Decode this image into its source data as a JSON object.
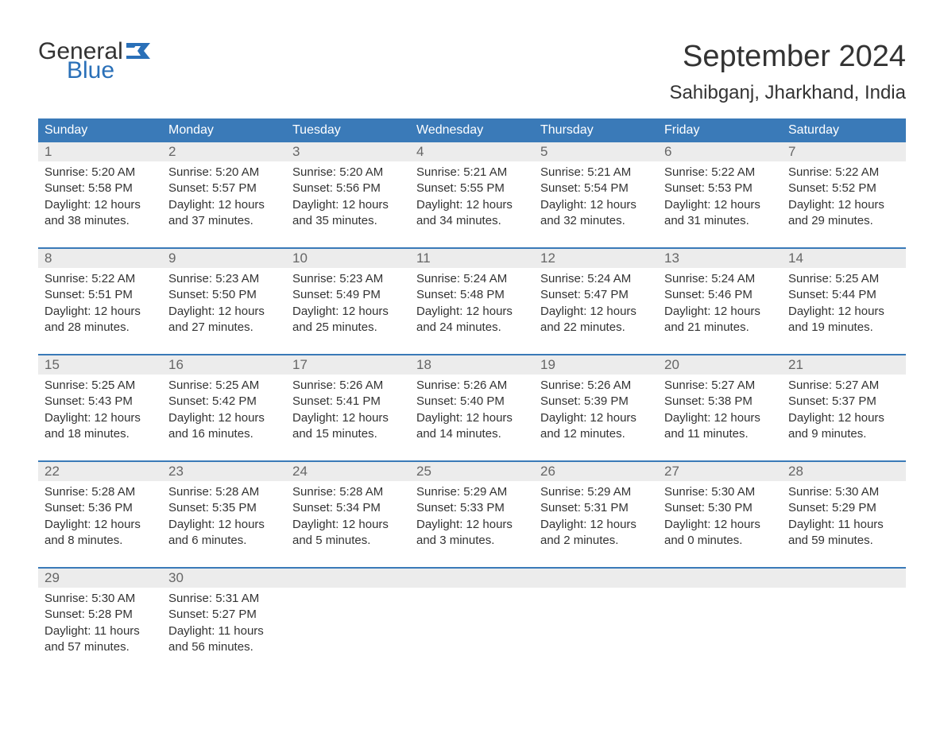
{
  "brand": {
    "word1": "General",
    "word2": "Blue",
    "flag_color": "#2a70b8"
  },
  "title": "September 2024",
  "subtitle": "Sahibganj, Jharkhand, India",
  "colors": {
    "header_bg": "#3a7ab8",
    "header_text": "#ffffff",
    "daynum_bg": "#ececec",
    "daynum_text": "#666666",
    "border_top": "#3a7ab8",
    "body_text": "#333333",
    "brand_blue": "#2a70b8",
    "background": "#ffffff"
  },
  "day_headers": [
    "Sunday",
    "Monday",
    "Tuesday",
    "Wednesday",
    "Thursday",
    "Friday",
    "Saturday"
  ],
  "weeks": [
    [
      {
        "n": "1",
        "sunrise": "Sunrise: 5:20 AM",
        "sunset": "Sunset: 5:58 PM",
        "dl1": "Daylight: 12 hours",
        "dl2": "and 38 minutes."
      },
      {
        "n": "2",
        "sunrise": "Sunrise: 5:20 AM",
        "sunset": "Sunset: 5:57 PM",
        "dl1": "Daylight: 12 hours",
        "dl2": "and 37 minutes."
      },
      {
        "n": "3",
        "sunrise": "Sunrise: 5:20 AM",
        "sunset": "Sunset: 5:56 PM",
        "dl1": "Daylight: 12 hours",
        "dl2": "and 35 minutes."
      },
      {
        "n": "4",
        "sunrise": "Sunrise: 5:21 AM",
        "sunset": "Sunset: 5:55 PM",
        "dl1": "Daylight: 12 hours",
        "dl2": "and 34 minutes."
      },
      {
        "n": "5",
        "sunrise": "Sunrise: 5:21 AM",
        "sunset": "Sunset: 5:54 PM",
        "dl1": "Daylight: 12 hours",
        "dl2": "and 32 minutes."
      },
      {
        "n": "6",
        "sunrise": "Sunrise: 5:22 AM",
        "sunset": "Sunset: 5:53 PM",
        "dl1": "Daylight: 12 hours",
        "dl2": "and 31 minutes."
      },
      {
        "n": "7",
        "sunrise": "Sunrise: 5:22 AM",
        "sunset": "Sunset: 5:52 PM",
        "dl1": "Daylight: 12 hours",
        "dl2": "and 29 minutes."
      }
    ],
    [
      {
        "n": "8",
        "sunrise": "Sunrise: 5:22 AM",
        "sunset": "Sunset: 5:51 PM",
        "dl1": "Daylight: 12 hours",
        "dl2": "and 28 minutes."
      },
      {
        "n": "9",
        "sunrise": "Sunrise: 5:23 AM",
        "sunset": "Sunset: 5:50 PM",
        "dl1": "Daylight: 12 hours",
        "dl2": "and 27 minutes."
      },
      {
        "n": "10",
        "sunrise": "Sunrise: 5:23 AM",
        "sunset": "Sunset: 5:49 PM",
        "dl1": "Daylight: 12 hours",
        "dl2": "and 25 minutes."
      },
      {
        "n": "11",
        "sunrise": "Sunrise: 5:24 AM",
        "sunset": "Sunset: 5:48 PM",
        "dl1": "Daylight: 12 hours",
        "dl2": "and 24 minutes."
      },
      {
        "n": "12",
        "sunrise": "Sunrise: 5:24 AM",
        "sunset": "Sunset: 5:47 PM",
        "dl1": "Daylight: 12 hours",
        "dl2": "and 22 minutes."
      },
      {
        "n": "13",
        "sunrise": "Sunrise: 5:24 AM",
        "sunset": "Sunset: 5:46 PM",
        "dl1": "Daylight: 12 hours",
        "dl2": "and 21 minutes."
      },
      {
        "n": "14",
        "sunrise": "Sunrise: 5:25 AM",
        "sunset": "Sunset: 5:44 PM",
        "dl1": "Daylight: 12 hours",
        "dl2": "and 19 minutes."
      }
    ],
    [
      {
        "n": "15",
        "sunrise": "Sunrise: 5:25 AM",
        "sunset": "Sunset: 5:43 PM",
        "dl1": "Daylight: 12 hours",
        "dl2": "and 18 minutes."
      },
      {
        "n": "16",
        "sunrise": "Sunrise: 5:25 AM",
        "sunset": "Sunset: 5:42 PM",
        "dl1": "Daylight: 12 hours",
        "dl2": "and 16 minutes."
      },
      {
        "n": "17",
        "sunrise": "Sunrise: 5:26 AM",
        "sunset": "Sunset: 5:41 PM",
        "dl1": "Daylight: 12 hours",
        "dl2": "and 15 minutes."
      },
      {
        "n": "18",
        "sunrise": "Sunrise: 5:26 AM",
        "sunset": "Sunset: 5:40 PM",
        "dl1": "Daylight: 12 hours",
        "dl2": "and 14 minutes."
      },
      {
        "n": "19",
        "sunrise": "Sunrise: 5:26 AM",
        "sunset": "Sunset: 5:39 PM",
        "dl1": "Daylight: 12 hours",
        "dl2": "and 12 minutes."
      },
      {
        "n": "20",
        "sunrise": "Sunrise: 5:27 AM",
        "sunset": "Sunset: 5:38 PM",
        "dl1": "Daylight: 12 hours",
        "dl2": "and 11 minutes."
      },
      {
        "n": "21",
        "sunrise": "Sunrise: 5:27 AM",
        "sunset": "Sunset: 5:37 PM",
        "dl1": "Daylight: 12 hours",
        "dl2": "and 9 minutes."
      }
    ],
    [
      {
        "n": "22",
        "sunrise": "Sunrise: 5:28 AM",
        "sunset": "Sunset: 5:36 PM",
        "dl1": "Daylight: 12 hours",
        "dl2": "and 8 minutes."
      },
      {
        "n": "23",
        "sunrise": "Sunrise: 5:28 AM",
        "sunset": "Sunset: 5:35 PM",
        "dl1": "Daylight: 12 hours",
        "dl2": "and 6 minutes."
      },
      {
        "n": "24",
        "sunrise": "Sunrise: 5:28 AM",
        "sunset": "Sunset: 5:34 PM",
        "dl1": "Daylight: 12 hours",
        "dl2": "and 5 minutes."
      },
      {
        "n": "25",
        "sunrise": "Sunrise: 5:29 AM",
        "sunset": "Sunset: 5:33 PM",
        "dl1": "Daylight: 12 hours",
        "dl2": "and 3 minutes."
      },
      {
        "n": "26",
        "sunrise": "Sunrise: 5:29 AM",
        "sunset": "Sunset: 5:31 PM",
        "dl1": "Daylight: 12 hours",
        "dl2": "and 2 minutes."
      },
      {
        "n": "27",
        "sunrise": "Sunrise: 5:30 AM",
        "sunset": "Sunset: 5:30 PM",
        "dl1": "Daylight: 12 hours",
        "dl2": "and 0 minutes."
      },
      {
        "n": "28",
        "sunrise": "Sunrise: 5:30 AM",
        "sunset": "Sunset: 5:29 PM",
        "dl1": "Daylight: 11 hours",
        "dl2": "and 59 minutes."
      }
    ],
    [
      {
        "n": "29",
        "sunrise": "Sunrise: 5:30 AM",
        "sunset": "Sunset: 5:28 PM",
        "dl1": "Daylight: 11 hours",
        "dl2": "and 57 minutes."
      },
      {
        "n": "30",
        "sunrise": "Sunrise: 5:31 AM",
        "sunset": "Sunset: 5:27 PM",
        "dl1": "Daylight: 11 hours",
        "dl2": "and 56 minutes."
      },
      null,
      null,
      null,
      null,
      null
    ]
  ]
}
